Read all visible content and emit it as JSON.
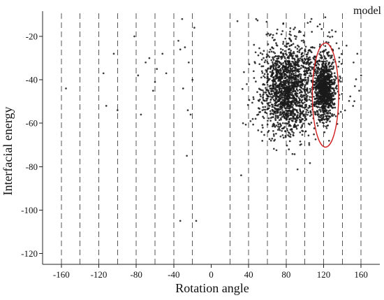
{
  "chart_data": {
    "type": "scatter",
    "title": "",
    "legend_text": "model",
    "legend_placement": "top-right",
    "xlabel": "Rotation angle",
    "ylabel": "Interfacial energy",
    "xlim": [
      -180,
      180
    ],
    "ylim": [
      -125,
      -10
    ],
    "x_ticks": [
      -160,
      -120,
      -80,
      -40,
      0,
      40,
      80,
      120,
      160
    ],
    "x_tick_labels": [
      "-160",
      "-120",
      "-80",
      "-40",
      "0",
      "40",
      "80",
      "120",
      "160"
    ],
    "y_ticks": [
      -20,
      -40,
      -60,
      -80,
      -100,
      -120
    ],
    "y_tick_labels": [
      "-20",
      "-40",
      "-60",
      "-80",
      "-100",
      "-120"
    ],
    "grid": true,
    "grid_style": "vertical dashed lines every 20 degrees",
    "vertical_grid_x": [
      -160,
      -140,
      -120,
      -100,
      -80,
      -60,
      -40,
      -20,
      20,
      40,
      60,
      80,
      100,
      120,
      140,
      160
    ],
    "point_color": "#1a1a1a",
    "highlight_color": "#d11f1f",
    "clusters": [
      {
        "center_x": 80,
        "center_y": -45,
        "spread_x": 13,
        "spread_y": 10,
        "count": 1350
      },
      {
        "center_x": 121,
        "center_y": -44,
        "spread_x": 5,
        "spread_y": 7,
        "count": 850
      },
      {
        "center_x": 100,
        "center_y": -38,
        "spread_x": 22,
        "spread_y": 11,
        "count": 500
      }
    ],
    "outliers": [
      {
        "x": -155,
        "y": -44
      },
      {
        "x": -115,
        "y": -37
      },
      {
        "x": -112,
        "y": -52
      },
      {
        "x": -104,
        "y": -28
      },
      {
        "x": -100,
        "y": -54
      },
      {
        "x": -82,
        "y": -20
      },
      {
        "x": -78,
        "y": -38
      },
      {
        "x": -75,
        "y": -56
      },
      {
        "x": -70,
        "y": -32
      },
      {
        "x": -66,
        "y": -30
      },
      {
        "x": -62,
        "y": -45
      },
      {
        "x": -60,
        "y": -41
      },
      {
        "x": -58,
        "y": -35
      },
      {
        "x": -52,
        "y": -28
      },
      {
        "x": -48,
        "y": -37
      },
      {
        "x": -35,
        "y": -22
      },
      {
        "x": -33,
        "y": -26
      },
      {
        "x": -31,
        "y": -12
      },
      {
        "x": -30,
        "y": -44
      },
      {
        "x": -28,
        "y": -25
      },
      {
        "x": -26,
        "y": -75
      },
      {
        "x": -25,
        "y": -54
      },
      {
        "x": -24,
        "y": -32
      },
      {
        "x": -22,
        "y": -56
      },
      {
        "x": -20,
        "y": -40
      },
      {
        "x": -18,
        "y": -16
      },
      {
        "x": -33,
        "y": -105
      },
      {
        "x": -16,
        "y": -105
      },
      {
        "x": 28,
        "y": -13
      },
      {
        "x": 32,
        "y": -84
      },
      {
        "x": 34,
        "y": -60
      },
      {
        "x": 38,
        "y": -42
      },
      {
        "x": 45,
        "y": -48
      },
      {
        "x": 48,
        "y": -12
      },
      {
        "x": 152,
        "y": -32
      },
      {
        "x": 156,
        "y": -28
      },
      {
        "x": 158,
        "y": -45
      },
      {
        "x": 160,
        "y": -38
      }
    ],
    "highlight": {
      "shape": "ellipse",
      "center_x": 122,
      "center_y": -47,
      "radius_x": 14,
      "radius_y": 24
    }
  }
}
